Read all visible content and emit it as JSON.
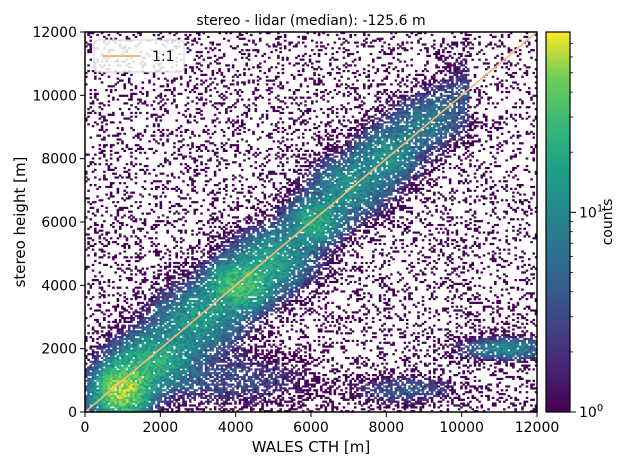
{
  "chart_data": {
    "type": "heatmap",
    "title": "stereo - lidar (median): -125.6 m",
    "xlabel": "WALES CTH [m]",
    "ylabel": "stereo height [m]",
    "xlim": [
      0,
      12000
    ],
    "ylim": [
      0,
      12000
    ],
    "x_ticks": [
      "0",
      "2000",
      "4000",
      "6000",
      "8000",
      "10000",
      "12000"
    ],
    "y_ticks": [
      "0",
      "2000",
      "4000",
      "6000",
      "8000",
      "10000",
      "12000"
    ],
    "colorbar": {
      "label": "counts",
      "scale": "log",
      "range": [
        1,
        80
      ],
      "ticks": [
        {
          "value": 1,
          "base": "10",
          "exp": "0"
        },
        {
          "value": 10,
          "base": "10",
          "exp": "1"
        }
      ],
      "colormap": "viridis"
    },
    "reference_line": {
      "name": "1:1",
      "x": [
        0,
        12000
      ],
      "y": [
        0,
        12000
      ],
      "color": "#f5b87a"
    },
    "legend": {
      "placement": "top-left",
      "entries": [
        "1:1"
      ]
    },
    "density_clusters": [
      {
        "x": 1000,
        "y": 700,
        "sx": 400,
        "sy": 450,
        "peak": 60
      },
      {
        "x": 1800,
        "y": 1600,
        "sx": 600,
        "sy": 500,
        "peak": 20
      },
      {
        "x": 3000,
        "y": 2900,
        "sx": 700,
        "sy": 600,
        "peak": 12
      },
      {
        "x": 4100,
        "y": 4000,
        "sx": 500,
        "sy": 450,
        "peak": 30
      },
      {
        "x": 5000,
        "y": 4800,
        "sx": 600,
        "sy": 550,
        "peak": 14
      },
      {
        "x": 6100,
        "y": 6000,
        "sx": 400,
        "sy": 400,
        "peak": 18
      },
      {
        "x": 7000,
        "y": 7100,
        "sx": 600,
        "sy": 550,
        "peak": 10
      },
      {
        "x": 8000,
        "y": 8100,
        "sx": 500,
        "sy": 500,
        "peak": 9
      },
      {
        "x": 9000,
        "y": 9200,
        "sx": 600,
        "sy": 500,
        "peak": 5
      },
      {
        "x": 11200,
        "y": 2000,
        "sx": 700,
        "sy": 200,
        "peak": 10
      },
      {
        "x": 8500,
        "y": 700,
        "sx": 800,
        "sy": 250,
        "peak": 4
      },
      {
        "x": 4000,
        "y": 1000,
        "sx": 1200,
        "sy": 500,
        "peak": 3
      }
    ],
    "colors": {
      "frame": "#000000",
      "background": "#ffffff"
    }
  }
}
